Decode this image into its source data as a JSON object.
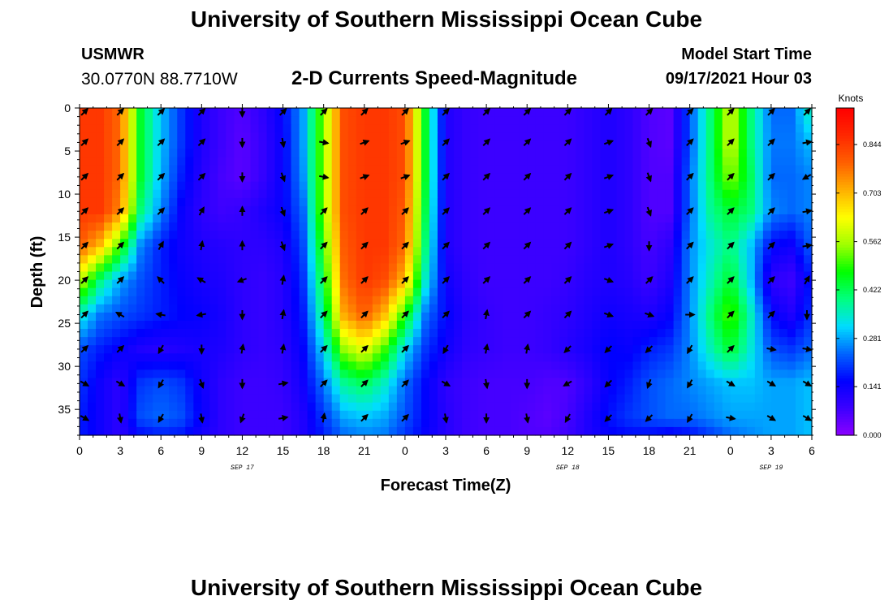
{
  "header": {
    "title": "University of Southern Mississippi Ocean Cube",
    "station": "USMWR",
    "coords": "30.0770N  88.7710W",
    "plot_title": "2-D Currents Speed-Magnitude",
    "model_start_label": "Model Start Time",
    "model_start_value": "09/17/2021 Hour 03"
  },
  "footer": {
    "title": "University of Southern Mississippi Ocean Cube"
  },
  "chart_data": {
    "type": "heatmap",
    "title": "2-D Currents Speed-Magnitude",
    "xlabel": "Forecast Time(Z)",
    "ylabel": "Depth (ft)",
    "x_unit": "forecast hours from 09/17/2021 00Z",
    "xlim": [
      0,
      54
    ],
    "ylim": [
      0,
      38
    ],
    "y_inverted": true,
    "x_ticks": [
      0,
      3,
      6,
      9,
      12,
      15,
      18,
      21,
      24,
      27,
      30,
      33,
      36,
      39,
      42,
      45,
      48,
      51,
      54
    ],
    "x_tick_labels": [
      "0",
      "3",
      "6",
      "9",
      "12",
      "15",
      "18",
      "21",
      "0",
      "3",
      "6",
      "9",
      "12",
      "15",
      "18",
      "21",
      "0",
      "3",
      "6"
    ],
    "y_ticks": [
      0,
      5,
      10,
      15,
      20,
      25,
      30,
      35
    ],
    "y_tick_labels": [
      "0",
      "5",
      "10",
      "15",
      "20",
      "25",
      "30",
      "35"
    ],
    "date_labels": [
      {
        "text": "SEP 17",
        "x": 12
      },
      {
        "text": "SEP 18",
        "x": 36
      },
      {
        "text": "SEP 19",
        "x": 51
      }
    ],
    "colorbar": {
      "title": "Knots",
      "ticks": [
        0.0,
        0.141,
        0.281,
        0.422,
        0.562,
        0.703,
        0.844
      ],
      "tick_labels": [
        "0.000",
        "0.141",
        "0.281",
        "0.422",
        "0.562",
        "0.703",
        "0.844"
      ],
      "range": [
        0,
        0.95
      ],
      "colors": [
        "#8c00ff",
        "#3c00ff",
        "#0000ff",
        "#0064ff",
        "#00dcff",
        "#00ff80",
        "#00ff00",
        "#a0ff00",
        "#ffff00",
        "#ffb000",
        "#ff6000",
        "#ff2800",
        "#ff0000"
      ]
    },
    "depths": [
      0,
      4,
      8,
      12,
      16,
      20,
      24,
      28,
      32,
      36,
      38
    ],
    "speed_times": [
      0,
      1.5,
      3,
      4.5,
      6,
      7.5,
      9,
      10.5,
      12,
      13.5,
      15,
      16.5,
      18,
      19.5,
      21,
      22.5,
      24,
      25.5,
      27,
      28.5,
      30,
      31.5,
      33,
      34.5,
      36,
      37.5,
      39,
      40.5,
      42,
      43.5,
      45,
      46.5,
      48,
      49.5,
      51,
      52.5,
      54
    ],
    "speed": [
      [
        0.85,
        0.85,
        0.78,
        0.45,
        0.3,
        0.2,
        0.12,
        0.08,
        0.06,
        0.1,
        0.16,
        0.28,
        0.55,
        0.82,
        0.85,
        0.85,
        0.82,
        0.45,
        0.12,
        0.09,
        0.08,
        0.08,
        0.08,
        0.08,
        0.08,
        0.1,
        0.12,
        0.1,
        0.06,
        0.05,
        0.22,
        0.4,
        0.6,
        0.4,
        0.24,
        0.24,
        0.38
      ],
      [
        0.85,
        0.85,
        0.78,
        0.45,
        0.3,
        0.2,
        0.12,
        0.08,
        0.05,
        0.09,
        0.15,
        0.28,
        0.55,
        0.82,
        0.85,
        0.85,
        0.82,
        0.45,
        0.12,
        0.09,
        0.08,
        0.08,
        0.08,
        0.08,
        0.08,
        0.1,
        0.12,
        0.1,
        0.06,
        0.05,
        0.22,
        0.4,
        0.6,
        0.4,
        0.25,
        0.25,
        0.3
      ],
      [
        0.85,
        0.85,
        0.78,
        0.45,
        0.29,
        0.18,
        0.11,
        0.07,
        0.05,
        0.09,
        0.15,
        0.27,
        0.55,
        0.82,
        0.85,
        0.85,
        0.82,
        0.45,
        0.12,
        0.09,
        0.08,
        0.08,
        0.08,
        0.08,
        0.08,
        0.1,
        0.12,
        0.1,
        0.06,
        0.06,
        0.24,
        0.4,
        0.55,
        0.42,
        0.24,
        0.24,
        0.26
      ],
      [
        0.85,
        0.85,
        0.75,
        0.4,
        0.26,
        0.15,
        0.1,
        0.08,
        0.09,
        0.12,
        0.15,
        0.24,
        0.55,
        0.82,
        0.85,
        0.85,
        0.8,
        0.43,
        0.12,
        0.09,
        0.08,
        0.08,
        0.08,
        0.08,
        0.08,
        0.1,
        0.12,
        0.1,
        0.06,
        0.06,
        0.24,
        0.38,
        0.45,
        0.4,
        0.26,
        0.24,
        0.26
      ],
      [
        0.8,
        0.7,
        0.5,
        0.26,
        0.18,
        0.14,
        0.12,
        0.11,
        0.1,
        0.1,
        0.12,
        0.22,
        0.5,
        0.8,
        0.85,
        0.85,
        0.78,
        0.4,
        0.12,
        0.09,
        0.08,
        0.08,
        0.08,
        0.08,
        0.08,
        0.1,
        0.12,
        0.1,
        0.07,
        0.1,
        0.26,
        0.34,
        0.4,
        0.3,
        0.16,
        0.14,
        0.24
      ],
      [
        0.6,
        0.4,
        0.28,
        0.22,
        0.18,
        0.15,
        0.13,
        0.12,
        0.1,
        0.09,
        0.11,
        0.2,
        0.45,
        0.78,
        0.85,
        0.82,
        0.7,
        0.35,
        0.14,
        0.1,
        0.08,
        0.08,
        0.08,
        0.08,
        0.09,
        0.11,
        0.12,
        0.11,
        0.08,
        0.12,
        0.26,
        0.36,
        0.45,
        0.3,
        0.1,
        0.08,
        0.18
      ],
      [
        0.35,
        0.25,
        0.22,
        0.2,
        0.18,
        0.16,
        0.15,
        0.13,
        0.1,
        0.09,
        0.11,
        0.18,
        0.4,
        0.72,
        0.8,
        0.7,
        0.48,
        0.25,
        0.16,
        0.11,
        0.09,
        0.08,
        0.08,
        0.09,
        0.1,
        0.12,
        0.14,
        0.13,
        0.12,
        0.15,
        0.26,
        0.4,
        0.52,
        0.36,
        0.16,
        0.12,
        0.2
      ],
      [
        0.22,
        0.18,
        0.15,
        0.12,
        0.11,
        0.12,
        0.13,
        0.12,
        0.1,
        0.09,
        0.1,
        0.16,
        0.32,
        0.55,
        0.62,
        0.5,
        0.32,
        0.2,
        0.14,
        0.1,
        0.09,
        0.08,
        0.08,
        0.09,
        0.11,
        0.13,
        0.16,
        0.15,
        0.18,
        0.2,
        0.26,
        0.36,
        0.45,
        0.34,
        0.22,
        0.2,
        0.24
      ],
      [
        0.2,
        0.14,
        0.1,
        0.2,
        0.22,
        0.2,
        0.14,
        0.1,
        0.08,
        0.08,
        0.09,
        0.14,
        0.25,
        0.38,
        0.42,
        0.35,
        0.24,
        0.16,
        0.1,
        0.08,
        0.07,
        0.07,
        0.07,
        0.06,
        0.06,
        0.1,
        0.15,
        0.18,
        0.22,
        0.24,
        0.26,
        0.28,
        0.3,
        0.3,
        0.28,
        0.28,
        0.3
      ],
      [
        0.18,
        0.14,
        0.1,
        0.22,
        0.24,
        0.22,
        0.15,
        0.1,
        0.08,
        0.08,
        0.08,
        0.12,
        0.2,
        0.28,
        0.3,
        0.28,
        0.22,
        0.16,
        0.11,
        0.08,
        0.07,
        0.07,
        0.06,
        0.05,
        0.07,
        0.12,
        0.17,
        0.2,
        0.22,
        0.24,
        0.24,
        0.26,
        0.28,
        0.28,
        0.28,
        0.28,
        0.3
      ],
      [
        0.18,
        0.14,
        0.1,
        0.16,
        0.18,
        0.17,
        0.13,
        0.1,
        0.08,
        0.08,
        0.08,
        0.12,
        0.18,
        0.24,
        0.26,
        0.25,
        0.2,
        0.15,
        0.11,
        0.08,
        0.07,
        0.07,
        0.06,
        0.06,
        0.08,
        0.12,
        0.15,
        0.16,
        0.16,
        0.14,
        0.16,
        0.2,
        0.24,
        0.26,
        0.28,
        0.28,
        0.3
      ]
    ],
    "vector_times": [
      0,
      3,
      6,
      9,
      12,
      15,
      18,
      21,
      24,
      27,
      30,
      33,
      36,
      39,
      42,
      45,
      48,
      51,
      54
    ],
    "vector_depths": [
      0,
      4,
      8,
      12,
      16,
      20,
      24,
      28,
      32,
      36
    ],
    "vector_angles_deg": [
      [
        45,
        45,
        45,
        45,
        -90,
        45,
        45,
        45,
        45,
        45,
        45,
        45,
        45,
        45,
        45,
        45,
        45,
        45,
        45
      ],
      [
        45,
        45,
        45,
        45,
        -90,
        -80,
        -10,
        20,
        20,
        45,
        45,
        45,
        45,
        20,
        -70,
        45,
        45,
        45,
        10
      ],
      [
        45,
        45,
        45,
        45,
        -90,
        -70,
        -10,
        20,
        20,
        45,
        45,
        45,
        45,
        20,
        -70,
        45,
        45,
        45,
        -150
      ],
      [
        45,
        45,
        45,
        60,
        90,
        -70,
        45,
        45,
        45,
        45,
        45,
        45,
        45,
        20,
        -70,
        45,
        45,
        45,
        10
      ],
      [
        45,
        45,
        60,
        80,
        90,
        -70,
        45,
        45,
        45,
        45,
        45,
        45,
        45,
        20,
        -90,
        45,
        45,
        45,
        10
      ],
      [
        45,
        45,
        135,
        150,
        -160,
        80,
        45,
        45,
        45,
        45,
        45,
        45,
        45,
        -20,
        45,
        45,
        45,
        45,
        60
      ],
      [
        45,
        150,
        170,
        -170,
        -90,
        80,
        45,
        45,
        45,
        45,
        80,
        45,
        45,
        -20,
        -20,
        0,
        45,
        45,
        -90
      ],
      [
        45,
        45,
        -120,
        -90,
        80,
        80,
        45,
        45,
        45,
        -120,
        80,
        80,
        -135,
        -135,
        -135,
        -120,
        45,
        -10,
        -10
      ],
      [
        -30,
        -30,
        -120,
        -70,
        -90,
        10,
        45,
        45,
        45,
        -30,
        -80,
        -90,
        -150,
        -135,
        -110,
        -120,
        -30,
        -30,
        -30
      ],
      [
        -30,
        -80,
        -120,
        -80,
        -110,
        10,
        80,
        45,
        45,
        -80,
        -90,
        -80,
        -120,
        -135,
        -135,
        -120,
        -10,
        -30,
        -30
      ]
    ]
  }
}
